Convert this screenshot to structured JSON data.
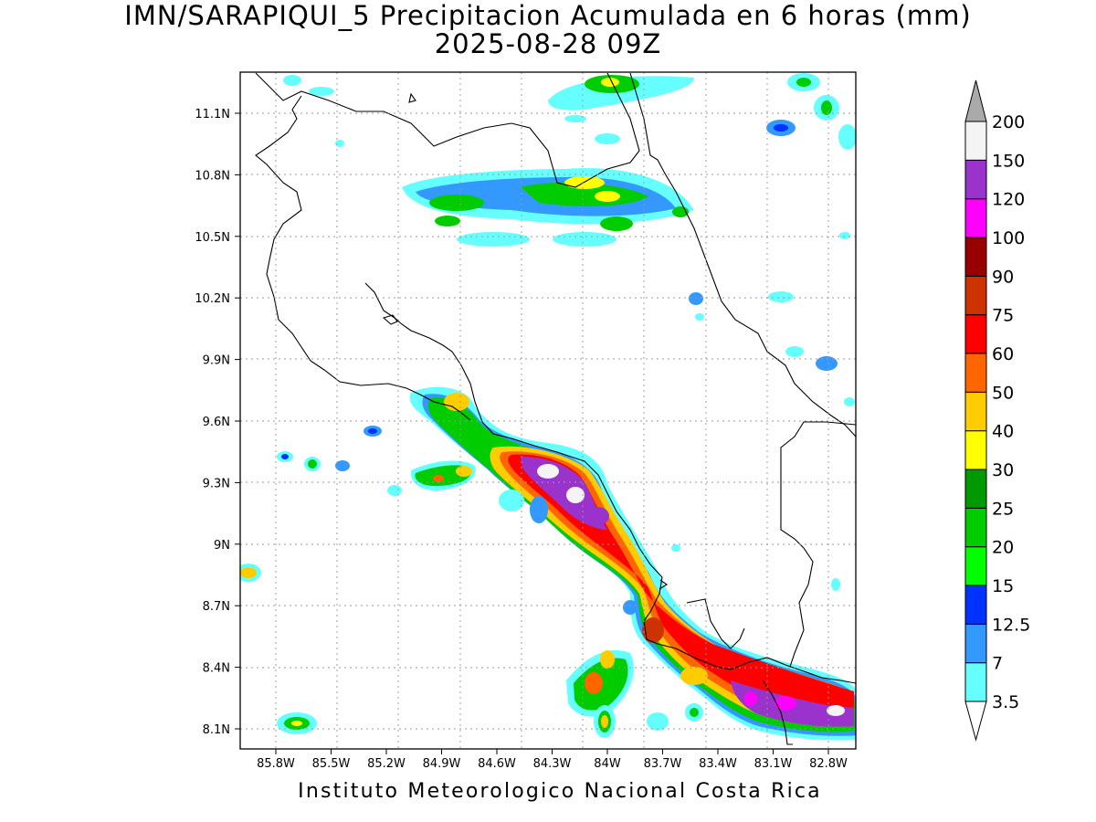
{
  "header": {
    "title_line1": "IMN/SARAPIQUI_5 Precipitacion Acumulada en 6 horas (mm)",
    "title_line2": "2025-08-28 09Z"
  },
  "footer": {
    "credit": "Instituto Meteorologico Nacional Costa Rica"
  },
  "map": {
    "lon_labels": [
      "85.8W",
      "85.5W",
      "85.2W",
      "84.9W",
      "84.6W",
      "84.3W",
      "84W",
      "83.7W",
      "83.4W",
      "83.1W",
      "82.8W"
    ],
    "lon_values": [
      -85.8,
      -85.5,
      -85.2,
      -84.9,
      -84.6,
      -84.3,
      -84.0,
      -83.7,
      -83.4,
      -83.1,
      -82.8
    ],
    "lat_labels": [
      "11.1N",
      "10.8N",
      "10.5N",
      "10.2N",
      "9.9N",
      "9.6N",
      "9.3N",
      "9N",
      "8.7N",
      "8.4N",
      "8.1N"
    ],
    "lat_values": [
      11.1,
      10.8,
      10.5,
      10.2,
      9.9,
      9.6,
      9.3,
      9.0,
      8.7,
      8.4,
      8.1
    ],
    "grid": true
  },
  "colorbar": {
    "levels": [
      "3.5",
      "7",
      "12.5",
      "15",
      "20",
      "25",
      "30",
      "40",
      "50",
      "60",
      "75",
      "90",
      "100",
      "120",
      "150",
      "200"
    ],
    "colors": [
      "#66ffff",
      "#3399ff",
      "#0033ff",
      "#00ff00",
      "#00cc00",
      "#009900",
      "#ffff00",
      "#ffcc00",
      "#ff6600",
      "#ff0000",
      "#cc3300",
      "#990000",
      "#ff00ff",
      "#9933cc",
      "#f4f4f4"
    ],
    "arrow_low_color": "#ffffff",
    "arrow_high_color": "#aaaaaa"
  }
}
